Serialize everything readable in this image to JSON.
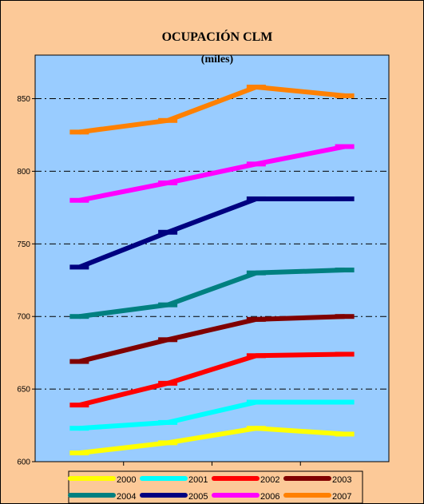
{
  "chart_data": {
    "type": "line",
    "title": "OCUPACIÓN CLM",
    "subtitle": "(miles)",
    "xlabel": "",
    "ylabel": "",
    "ylim": [
      600,
      880
    ],
    "yticks": [
      600,
      650,
      700,
      750,
      800,
      850
    ],
    "grid": "dashed horizontal",
    "legend_position": "bottom",
    "plot_background": "#99ccff",
    "chart_background": "#fcc998",
    "x_points": 4,
    "series": [
      {
        "name": "2000",
        "color": "#ffff00",
        "values": [
          606,
          613,
          623,
          619
        ]
      },
      {
        "name": "2001",
        "color": "#00ffff",
        "values": [
          623,
          627,
          641,
          641
        ]
      },
      {
        "name": "2002",
        "color": "#ff0000",
        "values": [
          639,
          654,
          673,
          674
        ]
      },
      {
        "name": "2003",
        "color": "#800000",
        "values": [
          669,
          684,
          698,
          700
        ]
      },
      {
        "name": "2004",
        "color": "#008080",
        "values": [
          700,
          708,
          730,
          732
        ]
      },
      {
        "name": "2005",
        "color": "#000080",
        "values": [
          734,
          758,
          781,
          781
        ]
      },
      {
        "name": "2006",
        "color": "#ff00ff",
        "values": [
          780,
          792,
          805,
          817
        ]
      },
      {
        "name": "2007",
        "color": "#ff8000",
        "values": [
          827,
          835,
          858,
          852
        ]
      }
    ]
  }
}
